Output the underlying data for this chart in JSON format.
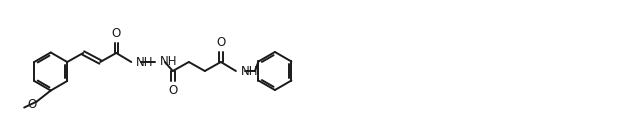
{
  "bg_color": "#ffffff",
  "line_color": "#1a1a1a",
  "line_width": 1.4,
  "font_size": 8.5,
  "fig_width": 6.32,
  "fig_height": 1.38,
  "dpi": 100,
  "xlim": [
    0,
    126
  ],
  "ylim": [
    0,
    25
  ]
}
